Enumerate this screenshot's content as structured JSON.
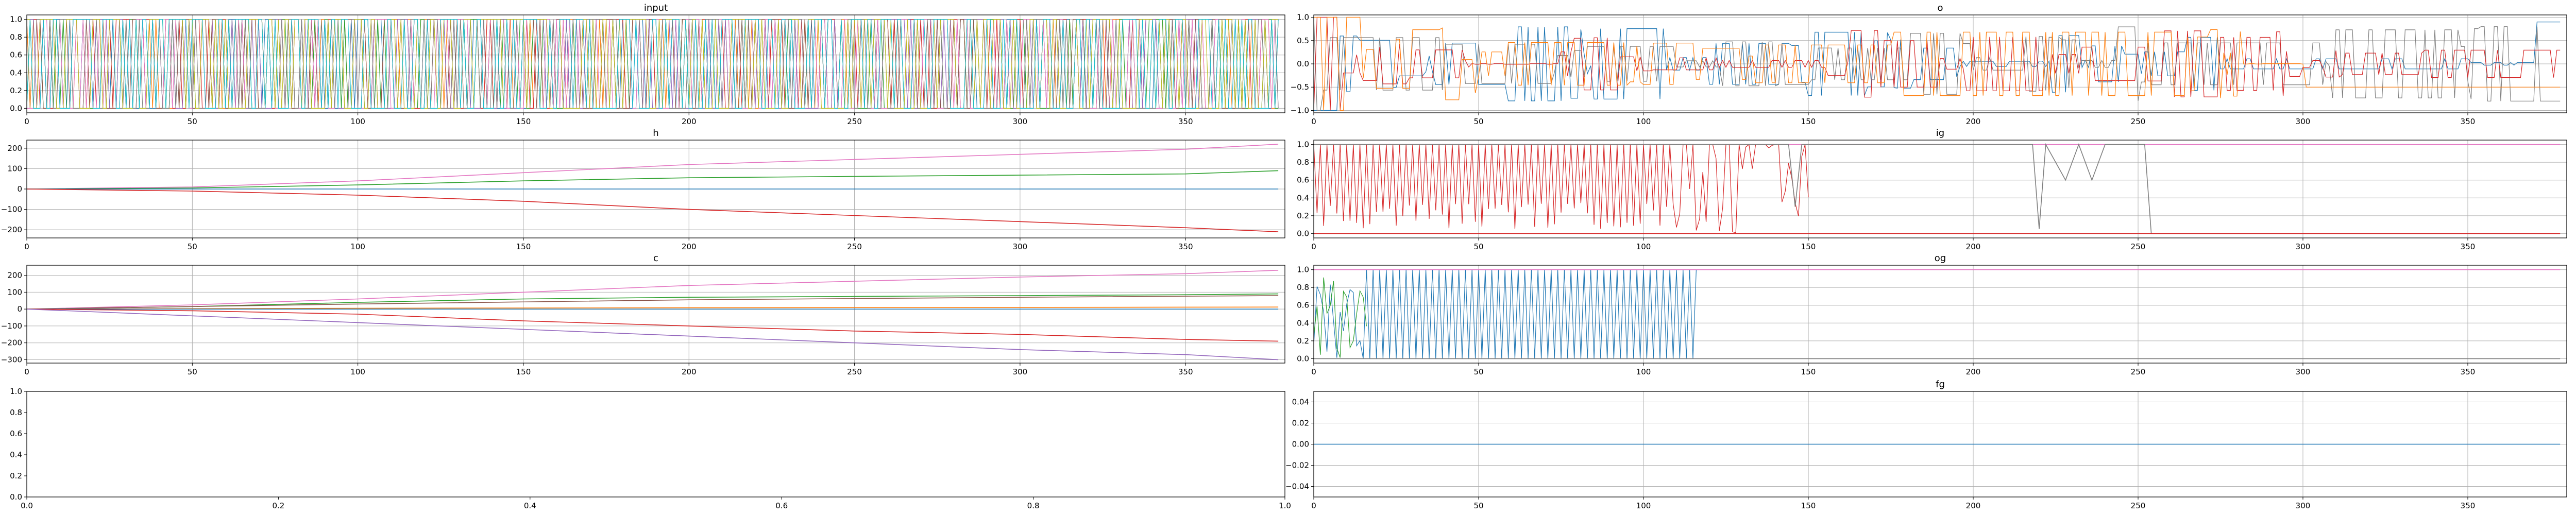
{
  "figure": {
    "colors": [
      "#1f77b4",
      "#ff7f0e",
      "#2ca02c",
      "#d62728",
      "#9467bd",
      "#8c564b",
      "#e377c2",
      "#7f7f7f",
      "#bcbd22",
      "#17becf"
    ]
  },
  "chart_data": [
    {
      "id": "input",
      "type": "line",
      "title": "input",
      "xlim": [
        0,
        380
      ],
      "ylim": [
        -0.05,
        1.05
      ],
      "xticks": [
        0,
        50,
        100,
        150,
        200,
        250,
        300,
        350
      ],
      "xtick_labels": [
        "0",
        "50",
        "100",
        "150",
        "200",
        "250",
        "300",
        "350"
      ],
      "yticks": [
        0.0,
        0.2,
        0.4,
        0.6,
        0.8,
        1.0
      ],
      "ytick_labels": [
        "0.0",
        "0.2",
        "0.4",
        "0.6",
        "0.8",
        "1.0"
      ],
      "grid": true,
      "series": [
        {
          "color": "#1f77b4",
          "binary": true,
          "low": 0,
          "high": 1,
          "steps": 378
        }
      ],
      "note_series_count": 10
    },
    {
      "id": "o",
      "type": "line",
      "title": "o",
      "xlim": [
        0,
        380
      ],
      "ylim": [
        -1.05,
        1.05
      ],
      "xticks": [
        0,
        50,
        100,
        150,
        200,
        250,
        300,
        350
      ],
      "xtick_labels": [
        "0",
        "50",
        "100",
        "150",
        "200",
        "250",
        "300",
        "350"
      ],
      "yticks": [
        -1.0,
        -0.5,
        0.0,
        0.5,
        1.0
      ],
      "ytick_labels": [
        "−1.0",
        "−0.5",
        "0.0",
        "0.5",
        "1.0"
      ],
      "grid": true
    },
    {
      "id": "h",
      "type": "line",
      "title": "h",
      "xlim": [
        0,
        380
      ],
      "ylim": [
        -240,
        240
      ],
      "xticks": [
        0,
        50,
        100,
        150,
        200,
        250,
        300,
        350
      ],
      "xtick_labels": [
        "0",
        "50",
        "100",
        "150",
        "200",
        "250",
        "300",
        "350"
      ],
      "yticks": [
        -200,
        -100,
        0,
        100,
        200
      ],
      "ytick_labels": [
        "−200",
        "−100",
        "0",
        "100",
        "200"
      ],
      "grid": true,
      "series": [
        {
          "color": "#e377c2",
          "x": [
            0,
            50,
            100,
            150,
            200,
            250,
            300,
            350,
            378
          ],
          "values": [
            0,
            10,
            40,
            80,
            120,
            145,
            170,
            195,
            220
          ]
        },
        {
          "color": "#2ca02c",
          "x": [
            0,
            50,
            100,
            150,
            200,
            250,
            300,
            350,
            378
          ],
          "values": [
            0,
            5,
            20,
            40,
            55,
            62,
            68,
            74,
            90
          ]
        },
        {
          "color": "#1f77b4",
          "x": [
            0,
            378
          ],
          "values": [
            0,
            0
          ]
        },
        {
          "color": "#d62728",
          "x": [
            0,
            50,
            100,
            150,
            200,
            250,
            300,
            350,
            378
          ],
          "values": [
            0,
            -10,
            -30,
            -60,
            -100,
            -130,
            -160,
            -190,
            -210
          ]
        }
      ]
    },
    {
      "id": "ig",
      "type": "line",
      "title": "ig",
      "xlim": [
        0,
        380
      ],
      "ylim": [
        -0.05,
        1.05
      ],
      "xticks": [
        0,
        50,
        100,
        150,
        200,
        250,
        300,
        350
      ],
      "xtick_labels": [
        "0",
        "50",
        "100",
        "150",
        "200",
        "250",
        "300",
        "350"
      ],
      "yticks": [
        0.0,
        0.2,
        0.4,
        0.6,
        0.8,
        1.0
      ],
      "ytick_labels": [
        "0.0",
        "0.2",
        "0.4",
        "0.6",
        "0.8",
        "1.0"
      ],
      "grid": true,
      "series": [
        {
          "color": "#e377c2",
          "x": [
            0,
            378
          ],
          "values": [
            1,
            1
          ]
        },
        {
          "color": "#7f7f7f",
          "x": [
            0,
            144,
            146,
            148,
            152,
            154,
            218,
            220,
            222,
            228,
            232,
            236,
            240,
            248,
            252,
            254,
            378
          ],
          "values": [
            1,
            1,
            0.3,
            1,
            1,
            1,
            1,
            0.05,
            1,
            0.6,
            1,
            0.6,
            1,
            1,
            1,
            0,
            0
          ]
        },
        {
          "color": "#d62728",
          "x": [
            0,
            378
          ],
          "values": [
            0,
            0
          ]
        }
      ]
    },
    {
      "id": "c",
      "type": "line",
      "title": "c",
      "xlim": [
        0,
        380
      ],
      "ylim": [
        -320,
        260
      ],
      "xticks": [
        0,
        50,
        100,
        150,
        200,
        250,
        300,
        350
      ],
      "xtick_labels": [
        "0",
        "50",
        "100",
        "150",
        "200",
        "250",
        "300",
        "350"
      ],
      "yticks": [
        -300,
        -200,
        -100,
        0,
        100,
        200
      ],
      "ytick_labels": [
        "−300",
        "−200",
        "−100",
        "0",
        "100",
        "200"
      ],
      "grid": true,
      "series": [
        {
          "color": "#e377c2",
          "x": [
            0,
            50,
            100,
            150,
            200,
            250,
            300,
            350,
            378
          ],
          "values": [
            0,
            25,
            60,
            100,
            140,
            165,
            190,
            210,
            230
          ]
        },
        {
          "color": "#2ca02c",
          "x": [
            0,
            50,
            100,
            150,
            200,
            250,
            300,
            350,
            378
          ],
          "values": [
            0,
            15,
            40,
            60,
            70,
            75,
            80,
            85,
            90
          ]
        },
        {
          "color": "#8c564b",
          "x": [
            0,
            100,
            200,
            300,
            378
          ],
          "values": [
            0,
            30,
            55,
            70,
            80
          ]
        },
        {
          "color": "#ff7f0e",
          "x": [
            0,
            100,
            200,
            300,
            378
          ],
          "values": [
            0,
            5,
            8,
            10,
            12
          ]
        },
        {
          "color": "#1f77b4",
          "x": [
            0,
            378
          ],
          "values": [
            0,
            0
          ]
        },
        {
          "color": "#d62728",
          "x": [
            0,
            50,
            100,
            150,
            200,
            250,
            300,
            350,
            378
          ],
          "values": [
            0,
            -10,
            -30,
            -70,
            -100,
            -130,
            -150,
            -180,
            -190
          ]
        },
        {
          "color": "#9467bd",
          "x": [
            0,
            50,
            100,
            150,
            200,
            250,
            300,
            350,
            378
          ],
          "values": [
            0,
            -40,
            -80,
            -120,
            -160,
            -200,
            -240,
            -270,
            -300
          ]
        }
      ]
    },
    {
      "id": "og",
      "type": "line",
      "title": "og",
      "xlim": [
        0,
        380
      ],
      "ylim": [
        -0.05,
        1.05
      ],
      "xticks": [
        0,
        50,
        100,
        150,
        200,
        250,
        300,
        350
      ],
      "xtick_labels": [
        "0",
        "50",
        "100",
        "150",
        "200",
        "250",
        "300",
        "350"
      ],
      "yticks": [
        0.0,
        0.2,
        0.4,
        0.6,
        0.8,
        1.0
      ],
      "ytick_labels": [
        "0.0",
        "0.2",
        "0.4",
        "0.6",
        "0.8",
        "1.0"
      ],
      "grid": true,
      "series": [
        {
          "color": "#e377c2",
          "x": [
            0,
            378
          ],
          "values": [
            1,
            1
          ]
        },
        {
          "color": "#7f7f7f",
          "x": [
            0,
            378
          ],
          "values": [
            0,
            0
          ]
        }
      ]
    },
    {
      "id": "empty",
      "type": "line",
      "title": "",
      "xlim": [
        0,
        1
      ],
      "ylim": [
        0,
        1
      ],
      "xticks": [
        0,
        0.2,
        0.4,
        0.6,
        0.8,
        1.0
      ],
      "xtick_labels": [
        "0.0",
        "0.2",
        "0.4",
        "0.6",
        "0.8",
        "1.0"
      ],
      "yticks": [
        0,
        0.2,
        0.4,
        0.6,
        0.8,
        1.0
      ],
      "ytick_labels": [
        "0.0",
        "0.2",
        "0.4",
        "0.6",
        "0.8",
        "1.0"
      ],
      "grid": false,
      "series": []
    },
    {
      "id": "fg",
      "type": "line",
      "title": "fg",
      "xlim": [
        0,
        380
      ],
      "ylim": [
        -0.05,
        0.05
      ],
      "xticks": [
        0,
        50,
        100,
        150,
        200,
        250,
        300,
        350
      ],
      "xtick_labels": [
        "0",
        "50",
        "100",
        "150",
        "200",
        "250",
        "300",
        "350"
      ],
      "yticks": [
        -0.04,
        -0.02,
        0.0,
        0.02,
        0.04
      ],
      "ytick_labels": [
        "−0.04",
        "−0.02",
        "0.00",
        "0.02",
        "0.04"
      ],
      "grid": true,
      "series": [
        {
          "color": "#1f77b4",
          "x": [
            0,
            378
          ],
          "values": [
            0,
            0
          ]
        }
      ]
    }
  ]
}
